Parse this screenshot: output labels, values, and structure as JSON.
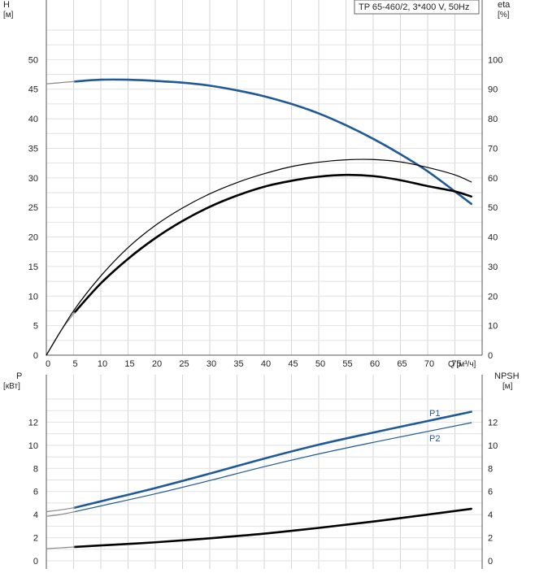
{
  "chart_data": [
    {
      "id": "head_eff",
      "type": "line",
      "title": "TP 65-460/2, 3*400 V, 50Hz",
      "xlabel": "Q [м³/ч]",
      "ylabel_left": "H",
      "ylabel_left_unit": "[м]",
      "ylabel_right": "eta",
      "ylabel_right_unit": "[%]",
      "xlim": [
        0,
        80
      ],
      "ylim_left": [
        0,
        55
      ],
      "ylim_right": [
        0,
        110
      ],
      "x_ticks": [
        "0",
        "5",
        "10",
        "15",
        "20",
        "25",
        "30",
        "35",
        "40",
        "45",
        "50",
        "55",
        "60",
        "65",
        "70",
        "75"
      ],
      "y_ticks_left": [
        "0",
        "5",
        "10",
        "15",
        "20",
        "25",
        "30",
        "35",
        "40",
        "45",
        "50"
      ],
      "y_ticks_right": [
        "0",
        "10",
        "20",
        "30",
        "40",
        "50",
        "60",
        "70",
        "80",
        "90",
        "100"
      ],
      "grid": true,
      "series": [
        {
          "key": "H",
          "axis": "left",
          "color": "#1f5a96",
          "style": "bold",
          "x": [
            5.2,
            10,
            15,
            20,
            25,
            30,
            35,
            40,
            45,
            50,
            55,
            60,
            65,
            70,
            75,
            78
          ],
          "y": [
            46.3,
            46.6,
            46.6,
            46.4,
            46.1,
            45.6,
            44.8,
            43.8,
            42.5,
            40.9,
            38.9,
            36.6,
            34.0,
            31.1,
            27.7,
            25.6
          ]
        },
        {
          "key": "H_ext",
          "axis": "left",
          "color": "#888888",
          "style": "thin",
          "x": [
            0,
            2.5,
            5.2
          ],
          "y": [
            45.9,
            46.1,
            46.3
          ]
        },
        {
          "key": "eta",
          "axis": "right",
          "color": "#000000",
          "style": "bold",
          "x": [
            5.2,
            10,
            15,
            20,
            25,
            30,
            35,
            40,
            45,
            50,
            55,
            60,
            65,
            70,
            75,
            78
          ],
          "y": [
            14.5,
            24.3,
            32.6,
            39.6,
            45.4,
            50.2,
            54.0,
            57.0,
            59.0,
            60.4,
            61.0,
            60.6,
            59.2,
            57.2,
            55.4,
            53.7
          ]
        },
        {
          "key": "eta_ext",
          "axis": "right",
          "color": "#888888",
          "style": "thin",
          "x": [
            0,
            2.5,
            5.2
          ],
          "y": [
            0,
            7.8,
            14.5
          ]
        },
        {
          "key": "eta_unreduced",
          "axis": "right",
          "color": "#000000",
          "style": "thin",
          "x": [
            0,
            5,
            10,
            15,
            20,
            25,
            30,
            35,
            40,
            45,
            50,
            55,
            60,
            65,
            70,
            75,
            78
          ],
          "y": [
            0,
            15.0,
            26.8,
            36.4,
            43.9,
            49.8,
            54.6,
            58.4,
            61.4,
            63.8,
            65.3,
            66.1,
            66.2,
            65.4,
            63.5,
            61.0,
            58.6
          ]
        }
      ]
    },
    {
      "id": "power_npsh",
      "type": "line",
      "xlabel": "",
      "ylabel_left": "P",
      "ylabel_left_unit": "[кВт]",
      "ylabel_right": "NPSH",
      "ylabel_right_unit": "[м]",
      "xlim": [
        0,
        80
      ],
      "ylim_left": [
        0,
        14
      ],
      "ylim_right": [
        0,
        14
      ],
      "y_ticks_left": [
        "0",
        "2",
        "4",
        "6",
        "8",
        "10",
        "12"
      ],
      "y_ticks_right": [
        "0",
        "2",
        "4",
        "6",
        "8",
        "10",
        "12"
      ],
      "grid": true,
      "series": [
        {
          "name": "P1",
          "axis": "left",
          "color": "#1f5a96",
          "style": "bold",
          "x": [
            5.2,
            10,
            20,
            30,
            40,
            50,
            60,
            70,
            78
          ],
          "y": [
            4.6,
            5.15,
            6.3,
            7.55,
            8.85,
            10.05,
            11.1,
            12.1,
            12.9
          ]
        },
        {
          "name": "P2",
          "axis": "left",
          "color": "#1f5a96",
          "style": "thin",
          "x": [
            5.2,
            10,
            20,
            30,
            40,
            50,
            60,
            70,
            78
          ],
          "y": [
            4.25,
            4.75,
            5.8,
            6.95,
            8.15,
            9.25,
            10.25,
            11.2,
            11.95
          ]
        },
        {
          "key": "P_ext",
          "axis": "left",
          "color": "#888888",
          "style": "thin",
          "x": [
            0,
            2.5,
            5.2
          ],
          "y": [
            4.25,
            4.4,
            4.6
          ]
        },
        {
          "key": "P2_ext",
          "axis": "left",
          "color": "#888888",
          "style": "thin",
          "x": [
            0,
            2.5,
            5.2
          ],
          "y": [
            3.85,
            4.0,
            4.25
          ]
        },
        {
          "key": "NPSH",
          "axis": "right",
          "color": "#000000",
          "style": "bold",
          "x": [
            5.2,
            10,
            20,
            30,
            40,
            50,
            60,
            70,
            78
          ],
          "y": [
            1.2,
            1.33,
            1.6,
            1.95,
            2.35,
            2.85,
            3.4,
            4.0,
            4.5
          ]
        },
        {
          "key": "NPSH_ext",
          "axis": "right",
          "color": "#888888",
          "style": "thin",
          "x": [
            0,
            2.5,
            5.2
          ],
          "y": [
            1.05,
            1.12,
            1.2
          ]
        }
      ]
    }
  ]
}
